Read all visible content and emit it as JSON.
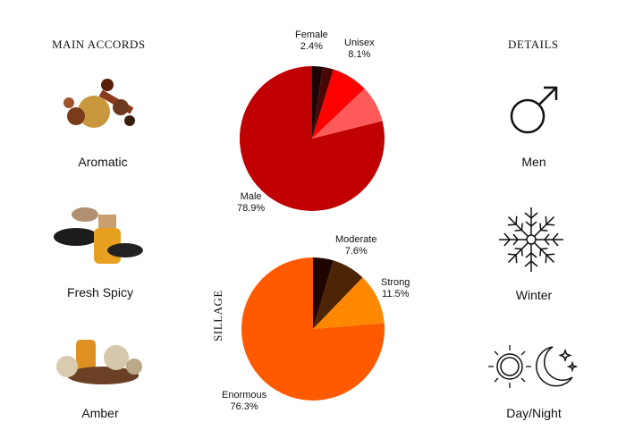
{
  "left": {
    "heading": "MAIN ACCORDS",
    "accords": [
      {
        "label": "Aromatic",
        "icon": "spices-image"
      },
      {
        "label": "Fresh Spicy",
        "icon": "spice-jar-image"
      },
      {
        "label": "Amber",
        "icon": "amber-resin-image"
      }
    ]
  },
  "right": {
    "heading": "DETAILS",
    "items": [
      {
        "label": "Men",
        "icon": "male-symbol-icon"
      },
      {
        "label": "Winter",
        "icon": "snowflake-icon"
      },
      {
        "label": "Day/Night",
        "icon": "sun-moon-icon"
      }
    ]
  },
  "chart_data": [
    {
      "type": "pie",
      "slices": [
        {
          "name": "",
          "value": 2.4,
          "color": "#1e0505"
        },
        {
          "name": "Female",
          "value": 2.4,
          "label": "2.4%",
          "color": "#4a0606"
        },
        {
          "name": "Unisex",
          "value": 8.1,
          "label": "8.1%",
          "color": "#ff0000"
        },
        {
          "name": "",
          "value": 8.2,
          "color": "#ff5a5a"
        },
        {
          "name": "Male",
          "value": 78.9,
          "label": "78.9%",
          "color": "#c00000"
        }
      ]
    },
    {
      "type": "pie",
      "title": "SILLAGE",
      "slices": [
        {
          "name": "",
          "value": 4.6,
          "color": "#1e0500"
        },
        {
          "name": "Moderate",
          "value": 7.6,
          "label": "7.6%",
          "color": "#4d2405"
        },
        {
          "name": "Strong",
          "value": 11.5,
          "label": "11.5%",
          "color": "#ff8800"
        },
        {
          "name": "Enormous",
          "value": 76.3,
          "label": "76.3%",
          "color": "#ff5a00"
        }
      ]
    }
  ]
}
